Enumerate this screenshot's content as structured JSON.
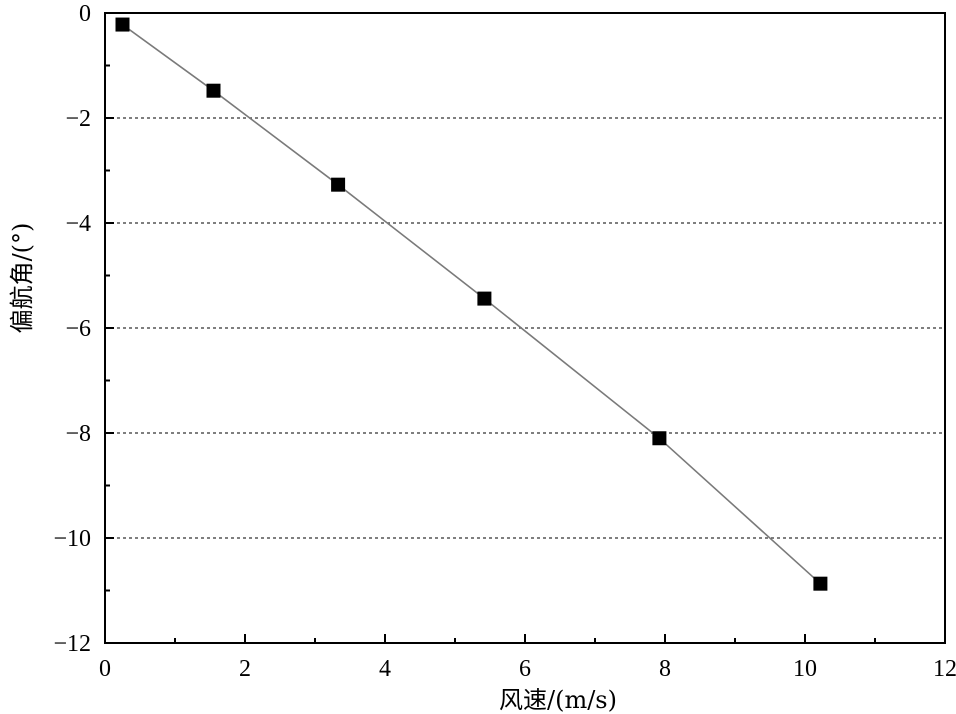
{
  "chart_data": {
    "type": "line",
    "title": "",
    "xlabel": "风速/(m/s)",
    "ylabel": "偏航角/(°)",
    "xlim": [
      0,
      12
    ],
    "ylim": [
      -12,
      0
    ],
    "x_ticks": [
      0,
      2,
      4,
      6,
      8,
      10,
      12
    ],
    "y_ticks": [
      0,
      -2,
      -4,
      -6,
      -8,
      -10,
      -12
    ],
    "x_tick_labels": [
      "0",
      "2",
      "4",
      "6",
      "8",
      "10",
      "12"
    ],
    "y_tick_labels": [
      "0",
      "−2",
      "−4",
      "−6",
      "−8",
      "−10",
      "−12"
    ],
    "grid": "horizontal dotted at y = -2, -4, -6, -8, -10",
    "grid_y": [
      -2,
      -4,
      -6,
      -8,
      -10
    ],
    "marker": "square",
    "colors": {
      "line": "#7a7a7a",
      "marker": "#000000",
      "grid": "#555555",
      "axis": "#000000"
    },
    "series": [
      {
        "x": [
          0.25,
          1.55,
          3.33,
          5.42,
          7.92,
          10.22
        ],
        "y": [
          -0.22,
          -1.48,
          -3.27,
          -5.44,
          -8.1,
          -10.87
        ]
      }
    ]
  }
}
